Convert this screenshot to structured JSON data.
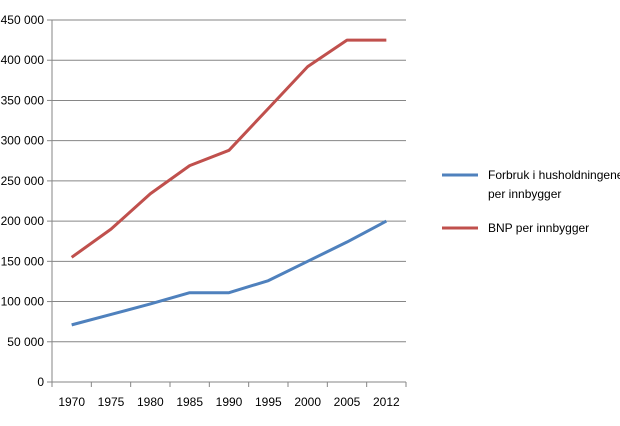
{
  "chart_data": {
    "type": "line",
    "title": "",
    "xlabel": "",
    "ylabel": "",
    "categories": [
      "1970",
      "1975",
      "1980",
      "1985",
      "1990",
      "1995",
      "2000",
      "2005",
      "2012"
    ],
    "ylim": [
      0,
      450000
    ],
    "yticks": [
      0,
      50000,
      100000,
      150000,
      200000,
      250000,
      300000,
      350000,
      400000,
      450000
    ],
    "ytick_labels": [
      "0",
      "50 000",
      "100 000",
      "150 000",
      "200 000",
      "250 000",
      "300 000",
      "350 000",
      "400 000",
      "450 000"
    ],
    "grid": true,
    "legend_position": "right",
    "series": [
      {
        "name": "Forbruk i husholdningene per innbygger",
        "legend_lines": [
          "Forbruk i husholdningene",
          "per innbygger"
        ],
        "color": "#4F81BD",
        "values": [
          71000,
          84000,
          97000,
          111000,
          111000,
          126000,
          150000,
          174000,
          200000
        ]
      },
      {
        "name": "BNP per innbygger",
        "legend_lines": [
          "BNP per innbygger"
        ],
        "color": "#C0504D",
        "values": [
          155000,
          190000,
          234000,
          269000,
          288000,
          340000,
          392000,
          425000,
          425000
        ]
      }
    ]
  }
}
